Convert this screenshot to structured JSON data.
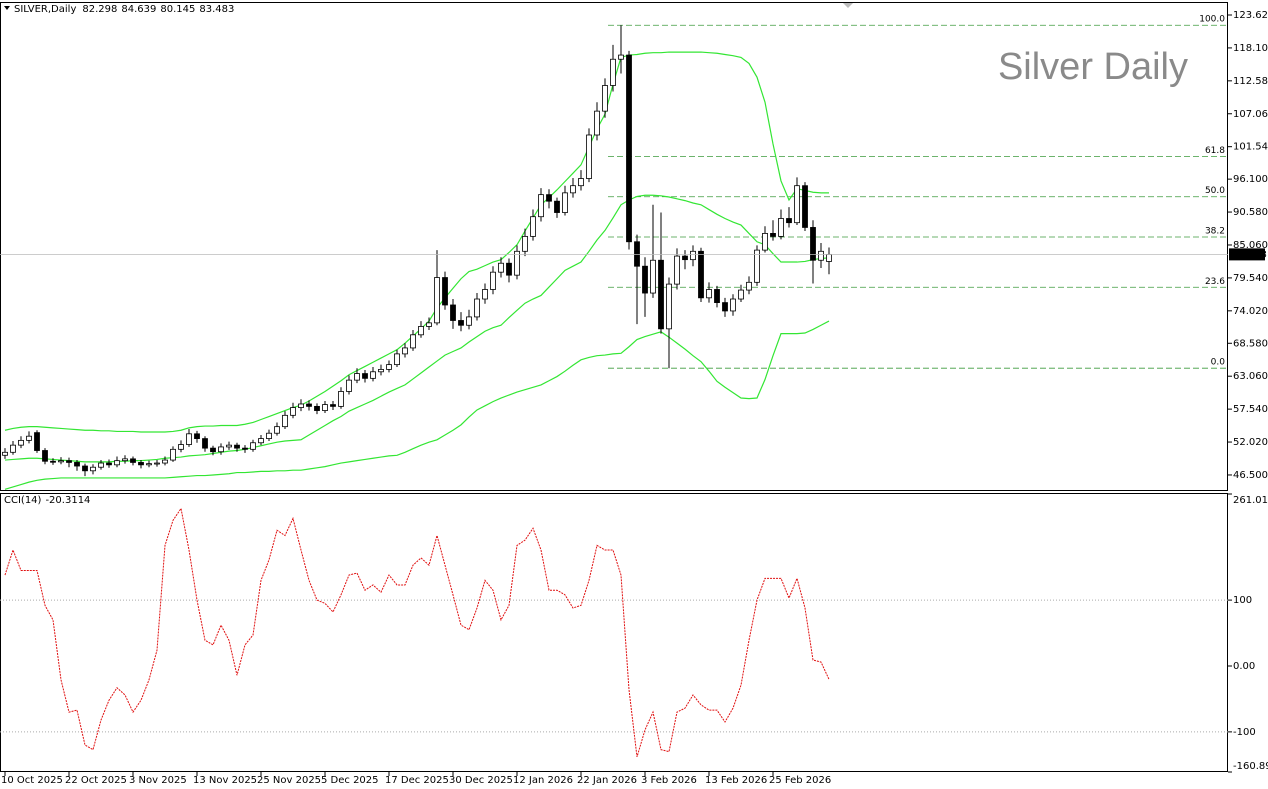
{
  "chart_data": [
    {
      "type": "candlestick",
      "title": "Silver Daily",
      "symbol": "SILVER,Daily",
      "categories": [
        "10 Oct 2025",
        null,
        null,
        null,
        null,
        null,
        null,
        null,
        "22 Oct 2025",
        null,
        null,
        null,
        null,
        null,
        null,
        null,
        "3 Nov 2025",
        null,
        null,
        null,
        null,
        null,
        null,
        null,
        "13 Nov 2025",
        null,
        null,
        null,
        null,
        null,
        null,
        null,
        "25 Nov 2025",
        null,
        null,
        null,
        null,
        null,
        null,
        null,
        "5 Dec 2025",
        null,
        null,
        null,
        null,
        null,
        null,
        null,
        "17 Dec 2025",
        null,
        null,
        null,
        null,
        null,
        null,
        null,
        "30 Dec 2025",
        null,
        null,
        null,
        null,
        null,
        null,
        null,
        "12 Jan 2026",
        null,
        null,
        null,
        null,
        null,
        null,
        null,
        "22 Jan 2026",
        null,
        null,
        null,
        null,
        null,
        null,
        null,
        "3 Feb 2026",
        null,
        null,
        null,
        null,
        null,
        null,
        null,
        "13 Feb 2026",
        null,
        null,
        null,
        null,
        null,
        null,
        null,
        "25 Feb 2026",
        null,
        null,
        null,
        null,
        null,
        null,
        null
      ],
      "open": [
        49.8,
        50.3,
        51.5,
        52.3,
        53.6,
        50.6,
        48.8,
        48.7,
        48.9,
        48.6,
        48.0,
        47.2,
        47.8,
        48.5,
        48.2,
        48.9,
        49.2,
        48.6,
        48.2,
        48.4,
        48.5,
        49.0,
        50.8,
        51.6,
        53.4,
        52.6,
        51.0,
        50.4,
        51.2,
        51.5,
        51.0,
        50.8,
        51.9,
        52.6,
        53.5,
        54.6,
        56.5,
        57.8,
        58.4,
        58.0,
        57.3,
        58.3,
        58.0,
        60.5,
        62.4,
        63.5,
        62.7,
        63.8,
        64.2,
        65.0,
        66.8,
        67.8,
        70.0,
        71.4,
        72.0,
        79.6,
        75.0,
        72.4,
        71.6,
        73.0,
        76.0,
        77.6,
        80.5,
        82.0,
        80.0,
        84.0,
        86.5,
        89.8,
        93.5,
        92.4,
        90.5,
        93.8,
        95.0,
        96.2,
        103.5,
        107.5,
        111.8,
        116.2,
        116.9,
        85.6,
        81.5,
        77.0,
        82.5,
        71.0,
        78.5,
        83.2,
        82.6,
        84.0,
        76.2,
        77.6,
        75.4,
        74.0,
        76.0,
        77.5,
        78.8,
        84.2,
        87.0,
        86.5,
        89.5,
        88.8,
        95.0,
        88.0,
        82.5,
        82.298
      ],
      "high": [
        51.0,
        52.2,
        53.0,
        53.8,
        54.0,
        51.0,
        49.3,
        49.5,
        49.4,
        49.0,
        48.4,
        48.3,
        49.0,
        49.1,
        49.6,
        49.8,
        49.6,
        49.0,
        48.9,
        49.0,
        49.6,
        51.3,
        52.3,
        54.2,
        53.9,
        53.0,
        51.4,
        51.8,
        52.1,
        51.9,
        51.5,
        52.4,
        53.2,
        54.1,
        55.3,
        57.2,
        58.6,
        59.2,
        59.0,
        58.5,
        58.9,
        58.9,
        61.2,
        63.2,
        64.4,
        64.1,
        64.6,
        65.0,
        65.7,
        67.5,
        68.6,
        70.8,
        72.3,
        72.9,
        84.2,
        80.6,
        76.0,
        73.8,
        74.2,
        77.0,
        78.6,
        81.5,
        83.0,
        82.8,
        85.0,
        87.8,
        91.0,
        94.6,
        94.4,
        93.0,
        95.0,
        96.3,
        97.6,
        104.6,
        109.0,
        113.0,
        118.6,
        121.9,
        117.6,
        86.8,
        83.0,
        91.8,
        90.5,
        79.6,
        84.5,
        84.2,
        85.0,
        84.6,
        78.8,
        78.2,
        76.2,
        76.8,
        78.4,
        79.8,
        85.0,
        88.2,
        89.2,
        91.0,
        91.4,
        96.4,
        95.6,
        89.2,
        85.4,
        84.639
      ],
      "low": [
        49.2,
        49.9,
        51.0,
        51.8,
        50.2,
        48.3,
        48.2,
        48.3,
        47.8,
        47.2,
        46.3,
        46.6,
        47.4,
        47.7,
        47.8,
        48.4,
        48.1,
        47.6,
        47.8,
        47.9,
        48.1,
        48.7,
        50.3,
        51.2,
        51.9,
        50.4,
        49.8,
        49.9,
        50.7,
        50.4,
        50.2,
        50.4,
        51.5,
        52.2,
        53.1,
        54.2,
        56.0,
        57.2,
        57.3,
        56.7,
        56.9,
        57.4,
        57.6,
        60.0,
        61.9,
        62.0,
        62.2,
        63.2,
        63.7,
        64.6,
        66.2,
        67.3,
        69.5,
        70.8,
        71.6,
        74.2,
        71.0,
        70.6,
        70.9,
        72.4,
        75.2,
        76.8,
        79.6,
        78.8,
        79.3,
        83.2,
        85.8,
        89.0,
        91.2,
        89.6,
        90.0,
        93.0,
        94.2,
        95.6,
        102.6,
        106.4,
        110.8,
        113.8,
        84.3,
        71.8,
        73.0,
        76.2,
        70.2,
        64.4,
        77.6,
        81.0,
        81.5,
        75.5,
        75.4,
        74.6,
        73.0,
        73.2,
        75.5,
        76.8,
        78.2,
        83.8,
        85.8,
        86.0,
        88.0,
        88.4,
        87.4,
        78.6,
        81.2,
        80.145
      ],
      "close": [
        50.3,
        51.5,
        52.3,
        53.0,
        50.6,
        48.8,
        48.7,
        48.9,
        48.6,
        48.0,
        47.2,
        47.8,
        48.5,
        48.2,
        48.9,
        49.2,
        48.6,
        48.2,
        48.4,
        48.5,
        49.0,
        50.8,
        51.6,
        53.4,
        52.6,
        51.0,
        50.4,
        51.2,
        51.5,
        51.0,
        50.8,
        51.9,
        52.6,
        53.5,
        54.6,
        56.5,
        57.8,
        58.4,
        58.0,
        57.3,
        58.3,
        58.0,
        60.5,
        62.4,
        63.5,
        62.7,
        63.8,
        64.2,
        65.0,
        66.8,
        67.8,
        70.0,
        71.4,
        72.0,
        79.6,
        75.0,
        72.4,
        71.6,
        73.0,
        76.0,
        77.6,
        80.5,
        82.0,
        80.0,
        84.0,
        86.5,
        89.8,
        93.5,
        92.4,
        90.5,
        93.8,
        95.0,
        96.2,
        103.5,
        107.5,
        111.8,
        116.2,
        116.9,
        85.6,
        81.5,
        77.0,
        82.5,
        71.0,
        78.5,
        83.2,
        82.6,
        84.0,
        76.2,
        77.6,
        75.4,
        74.0,
        76.0,
        77.5,
        78.8,
        84.2,
        87.0,
        86.5,
        89.5,
        88.8,
        95.0,
        88.0,
        82.5,
        84.0,
        83.483
      ],
      "overlays": [
        {
          "color": "#33e633",
          "values": [
            54.0,
            54.3,
            54.5,
            54.6,
            54.6,
            54.5,
            54.4,
            54.3,
            54.2,
            54.1,
            54.0,
            54.0,
            53.9,
            53.9,
            53.8,
            53.8,
            53.8,
            53.7,
            53.7,
            53.7,
            53.7,
            53.8,
            54.0,
            54.4,
            54.6,
            54.7,
            54.7,
            54.8,
            54.8,
            54.8,
            55.0,
            55.3,
            55.8,
            56.3,
            56.8,
            57.3,
            57.8,
            58.2,
            58.9,
            59.7,
            60.5,
            61.4,
            62.3,
            63.3,
            64.0,
            64.7,
            65.4,
            66.1,
            66.8,
            67.5,
            68.6,
            69.8,
            71.0,
            72.3,
            74.5,
            76.2,
            77.8,
            79.4,
            80.6,
            81.0,
            81.6,
            82.2,
            82.6,
            83.8,
            85.1,
            87.4,
            89.6,
            91.8,
            93.0,
            94.3,
            95.7,
            97.1,
            98.5,
            101.5,
            104.5,
            107.0,
            112.0,
            116.5,
            116.9,
            117.0,
            117.2,
            117.3,
            117.3,
            117.4,
            117.4,
            117.4,
            117.4,
            117.4,
            117.3,
            117.2,
            117.0,
            116.8,
            116.5,
            115.5,
            113.2,
            109.0,
            102.0,
            95.8,
            92.6,
            94.5,
            94.2,
            93.9,
            93.8,
            93.8
          ]
        },
        {
          "color": "#33e633",
          "values": [
            49.0,
            49.1,
            49.2,
            49.3,
            49.3,
            49.2,
            49.1,
            49.0,
            48.9,
            48.8,
            48.7,
            48.7,
            48.7,
            48.7,
            48.8,
            48.8,
            48.9,
            48.9,
            49.0,
            49.1,
            49.3,
            49.4,
            49.5,
            49.7,
            49.8,
            49.9,
            50.1,
            50.3,
            50.5,
            50.6,
            50.8,
            51.1,
            51.4,
            51.7,
            52.0,
            52.2,
            52.3,
            52.4,
            53.2,
            54.0,
            54.8,
            55.6,
            56.3,
            57.2,
            57.8,
            58.4,
            59.0,
            59.7,
            60.4,
            61.0,
            61.6,
            62.6,
            63.6,
            64.6,
            65.6,
            66.6,
            67.2,
            67.8,
            68.8,
            69.7,
            70.6,
            71.2,
            71.6,
            72.9,
            74.1,
            75.3,
            76.0,
            76.6,
            78.0,
            79.4,
            80.8,
            81.5,
            82.2,
            84.0,
            85.9,
            87.5,
            89.6,
            91.8,
            92.6,
            93.2,
            93.4,
            93.4,
            93.3,
            93.1,
            92.8,
            92.5,
            92.1,
            91.8,
            91.0,
            90.2,
            89.5,
            88.9,
            88.4,
            87.0,
            85.6,
            85.1,
            83.6,
            82.2,
            82.2,
            82.2,
            82.3,
            82.6,
            82.8,
            82.9
          ]
        },
        {
          "color": "#33e633",
          "values": [
            44.1,
            44.5,
            44.9,
            45.3,
            45.6,
            45.8,
            45.9,
            46.0,
            46.0,
            46.0,
            46.0,
            46.0,
            46.0,
            46.0,
            46.0,
            46.0,
            46.0,
            46.0,
            46.0,
            46.0,
            46.0,
            46.1,
            46.2,
            46.3,
            46.4,
            46.4,
            46.5,
            46.6,
            46.7,
            46.9,
            46.9,
            47.0,
            47.1,
            47.1,
            47.2,
            47.2,
            47.3,
            47.3,
            47.5,
            47.7,
            47.9,
            48.2,
            48.5,
            48.7,
            48.9,
            49.1,
            49.3,
            49.5,
            49.7,
            49.8,
            50.3,
            50.9,
            51.5,
            52.0,
            52.4,
            53.2,
            54.0,
            54.9,
            56.2,
            57.4,
            58.1,
            58.8,
            59.4,
            59.9,
            60.4,
            60.8,
            61.2,
            61.6,
            62.3,
            63.0,
            63.9,
            64.9,
            65.8,
            66.2,
            66.5,
            66.6,
            66.8,
            66.9,
            68.0,
            69.2,
            69.7,
            70.1,
            70.5,
            69.6,
            68.6,
            67.6,
            66.5,
            65.5,
            63.9,
            62.2,
            61.2,
            60.3,
            59.4,
            59.3,
            59.4,
            62.5,
            66.5,
            70.2,
            70.2,
            70.2,
            70.3,
            70.9,
            71.6,
            72.3
          ]
        }
      ],
      "fib_color": "#3c9a3c",
      "fib_levels": [
        {
          "value": 121.9,
          "label": "100.0"
        },
        {
          "value": 99.9,
          "label": "61.8"
        },
        {
          "value": 93.15,
          "label": "50.0"
        },
        {
          "value": 86.4,
          "label": "38.2"
        },
        {
          "value": 77.97,
          "label": "23.6"
        },
        {
          "value": 64.4,
          "label": "0.0"
        }
      ],
      "ylim": [
        43.98,
        125.63
      ],
      "yticks": [
        {
          "value": 123.62,
          "label": "123.620"
        },
        {
          "value": 118.1,
          "label": "118.100"
        },
        {
          "value": 112.58,
          "label": "112.580"
        },
        {
          "value": 107.06,
          "label": "107.060"
        },
        {
          "value": 101.54,
          "label": "101.540"
        },
        {
          "value": 96.1,
          "label": "96.100"
        },
        {
          "value": 90.58,
          "label": "90.580"
        },
        {
          "value": 85.06,
          "label": "85.060"
        },
        {
          "value": 79.54,
          "label": "79.540"
        },
        {
          "value": 74.02,
          "label": "74.020"
        },
        {
          "value": 68.58,
          "label": "68.580"
        },
        {
          "value": 63.06,
          "label": "63.060"
        },
        {
          "value": 57.54,
          "label": "57.540"
        },
        {
          "value": 52.02,
          "label": "52.020"
        },
        {
          "value": 46.5,
          "label": "46.500"
        }
      ]
    },
    {
      "type": "line",
      "title": "CCI(14)",
      "last": -20.3114,
      "series": [
        {
          "color": "#e01010",
          "values": [
            138,
            176,
            145,
            145,
            145,
            92,
            70,
            -21,
            -70,
            -67,
            -120,
            -127,
            -82,
            -52,
            -33,
            -44,
            -70,
            -52,
            -21,
            24,
            183,
            221,
            239,
            176,
            100,
            39,
            32,
            62,
            39,
            -14,
            32,
            47,
            130,
            161,
            206,
            198,
            224,
            176,
            130,
            100,
            95,
            82,
            108,
            138,
            141,
            115,
            123,
            112,
            138,
            123,
            123,
            153,
            164,
            153,
            198,
            153,
            108,
            62,
            55,
            88,
            130,
            115,
            70,
            92,
            183,
            191,
            209,
            176,
            115,
            115,
            108,
            88,
            92,
            130,
            183,
            176,
            176,
            138,
            -36,
            -138,
            -97,
            -70,
            -127,
            -130,
            -70,
            -64,
            -44,
            -59,
            -67,
            -67,
            -85,
            -64,
            -29,
            39,
            100,
            133,
            133,
            133,
            103,
            133,
            88,
            9,
            6,
            -20.3114
          ]
        }
      ],
      "levels": [
        100,
        -100
      ],
      "ylim": [
        -160.894,
        261.0188
      ],
      "yticks": [
        261.0188,
        100,
        {
          "value": 0,
          "label": "0.00"
        },
        -100,
        -160.894
      ]
    }
  ]
}
